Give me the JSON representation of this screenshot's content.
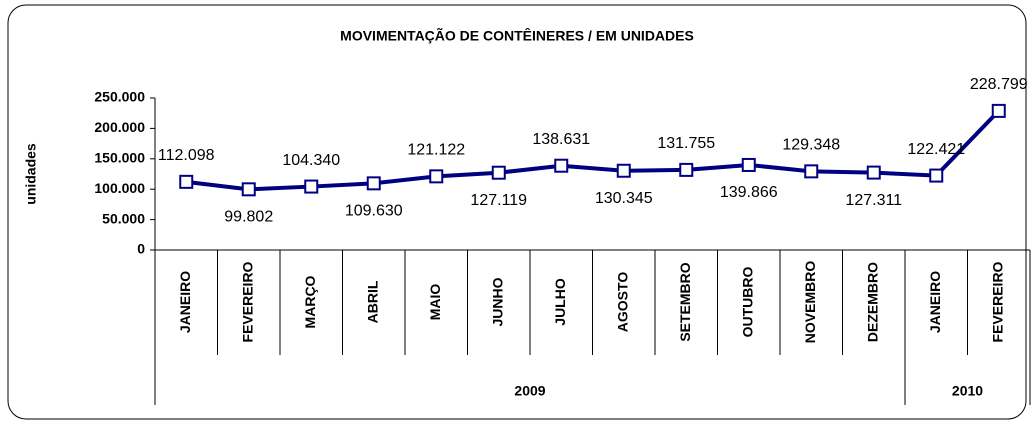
{
  "chart_data": {
    "type": "line",
    "title": "MOVIMENTAÇÃO DE CONTÊINERES / EM UNIDADES",
    "y_label": "unidades",
    "categories": [
      "JANEIRO",
      "FEVEREIRO",
      "MARÇO",
      "ABRIL",
      "MAIO",
      "JUNHO",
      "JULHO",
      "AGOSTO",
      "SETEMBRO",
      "OUTUBRO",
      "NOVEMBRO",
      "DEZEMBRO",
      "JANEIRO",
      "FEVEREIRO"
    ],
    "year_groups": [
      {
        "name": "2009",
        "count": 12
      },
      {
        "name": "2010",
        "count": 2
      }
    ],
    "series": [
      {
        "name": "unidades",
        "color": "#000080",
        "values": [
          112098,
          99802,
          104340,
          109630,
          121122,
          127119,
          138631,
          130345,
          131755,
          139866,
          129348,
          127311,
          122421,
          228799
        ],
        "value_labels": [
          "112.098",
          "99.802",
          "104.340",
          "109.630",
          "121.122",
          "127.119",
          "138.631",
          "130.345",
          "131.755",
          "139.866",
          "129.348",
          "127.311",
          "122.421",
          "228.799"
        ]
      }
    ],
    "ylim": [
      0,
      250000
    ],
    "yticks": [
      0,
      {
        "value": 50000,
        "label": "50.000"
      },
      {
        "value": 100000,
        "label": "100.000"
      },
      {
        "value": 150000,
        "label": "150.000"
      },
      {
        "value": 200000,
        "label": "200.000"
      },
      {
        "value": 250000,
        "label": "250.000"
      }
    ]
  }
}
